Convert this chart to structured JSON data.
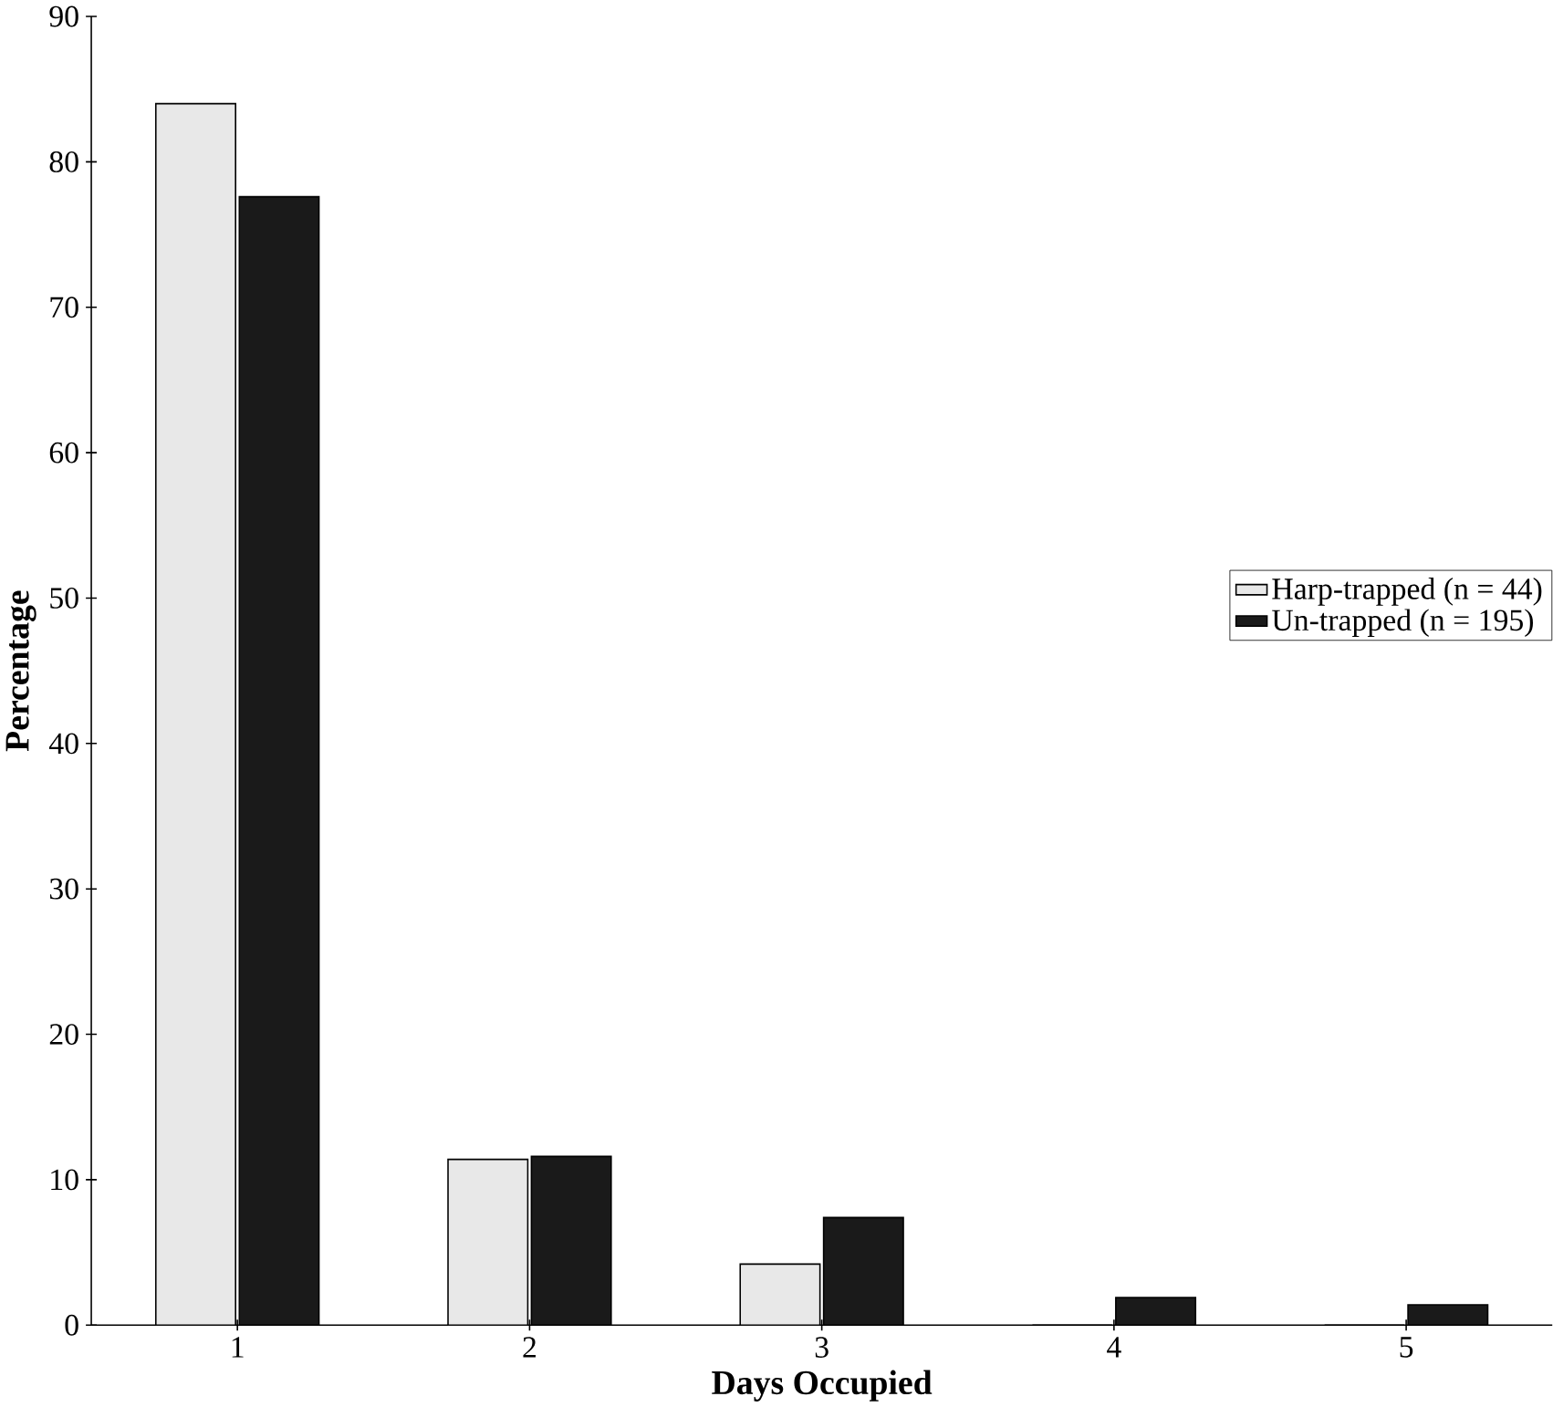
{
  "chart_data": {
    "type": "bar",
    "xlabel": "Days Occupied",
    "ylabel": "Percentage",
    "categories": [
      "1",
      "2",
      "3",
      "4",
      "5"
    ],
    "series": [
      {
        "name": "Harp-trapped (n = 44)",
        "color": "#e8e8e8",
        "values": [
          84,
          11.4,
          4.2,
          0,
          0
        ]
      },
      {
        "name": "Un-trapped (n = 195)",
        "color": "#1a1a1a",
        "values": [
          77.6,
          11.6,
          7.4,
          1.9,
          1.4
        ]
      }
    ],
    "ylim": [
      0,
      90
    ],
    "yticks": [
      0,
      10,
      20,
      30,
      40,
      50,
      60,
      70,
      80,
      90
    ],
    "legend": "right",
    "grid": false
  }
}
